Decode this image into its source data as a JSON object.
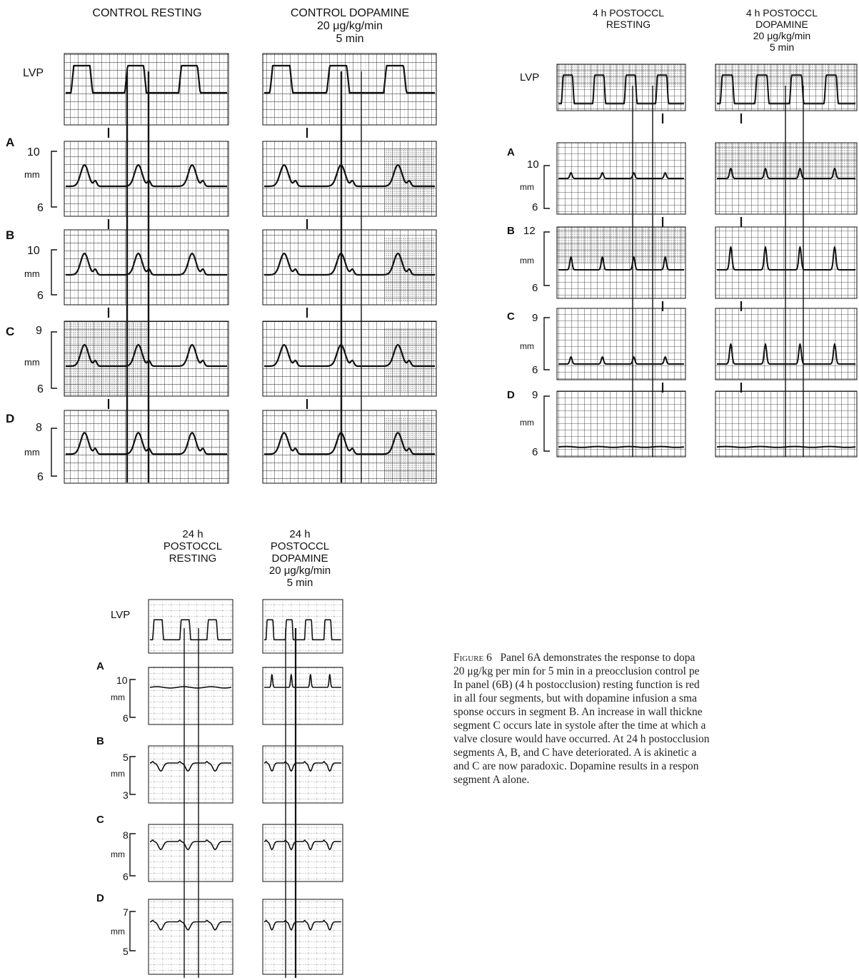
{
  "panels": {
    "p6a": {
      "col1_title": "CONTROL RESTING",
      "col2_title": "CONTROL DOPAMINE\n20 μg/kg/min\n5 min",
      "lvp": "LVP",
      "scales": [
        {
          "letter": "A",
          "top": "10",
          "unit": "mm",
          "bottom": "6"
        },
        {
          "letter": "B",
          "top": "10",
          "unit": "mm",
          "bottom": "6"
        },
        {
          "letter": "C",
          "top": "9",
          "unit": "mm",
          "bottom": "6"
        },
        {
          "letter": "D",
          "top": "8",
          "unit": "mm",
          "bottom": "6"
        }
      ]
    },
    "p6b": {
      "col1_title": "4 h POSTOCCL\nRESTING",
      "col2_title": "4 h POSTOCCL\nDOPAMINE\n20 μg/kg/min\n5 min",
      "lvp": "LVP",
      "scales": [
        {
          "letter": "A",
          "top": "10",
          "unit": "mm",
          "bottom": "6"
        },
        {
          "letter": "B",
          "top": "12",
          "unit": "mm",
          "bottom": "6"
        },
        {
          "letter": "C",
          "top": "9",
          "unit": "mm",
          "bottom": "6"
        },
        {
          "letter": "D",
          "top": "9",
          "unit": "mm",
          "bottom": "6"
        }
      ]
    },
    "p6c": {
      "col1_title": "24 h\nPOSTOCCL\nRESTING",
      "col2_title": "24 h\nPOSTOCCL\nDOPAMINE\n20 μg/kg/min\n5 min",
      "lvp": "LVP",
      "scales": [
        {
          "letter": "A",
          "top": "10",
          "unit": "mm",
          "bottom": "6"
        },
        {
          "letter": "B",
          "top": "5",
          "unit": "mm",
          "bottom": "3"
        },
        {
          "letter": "C",
          "top": "8",
          "unit": "mm",
          "bottom": "6"
        },
        {
          "letter": "D",
          "top": "7",
          "unit": "mm",
          "bottom": "5"
        }
      ]
    }
  },
  "caption": {
    "figure_label": "Figure 6",
    "lines": [
      "Panel 6A demonstrates the response to dopa",
      "20 μg/kg per min for 5 min in a preocclusion control pe",
      "In panel (6B) (4 h postocclusion) resting function is red",
      "in all four segments, but with dopamine infusion a sma",
      "sponse occurs in segment B. An increase in wall thickne",
      "segment C occurs late in systole after the time at which a",
      "valve closure would have occurred. At 24 h postocclusion",
      "segments A, B, and C have deteriorated. A is akinetic a",
      "and C are now paradoxic. Dopamine results in a respon",
      "segment A alone."
    ]
  }
}
